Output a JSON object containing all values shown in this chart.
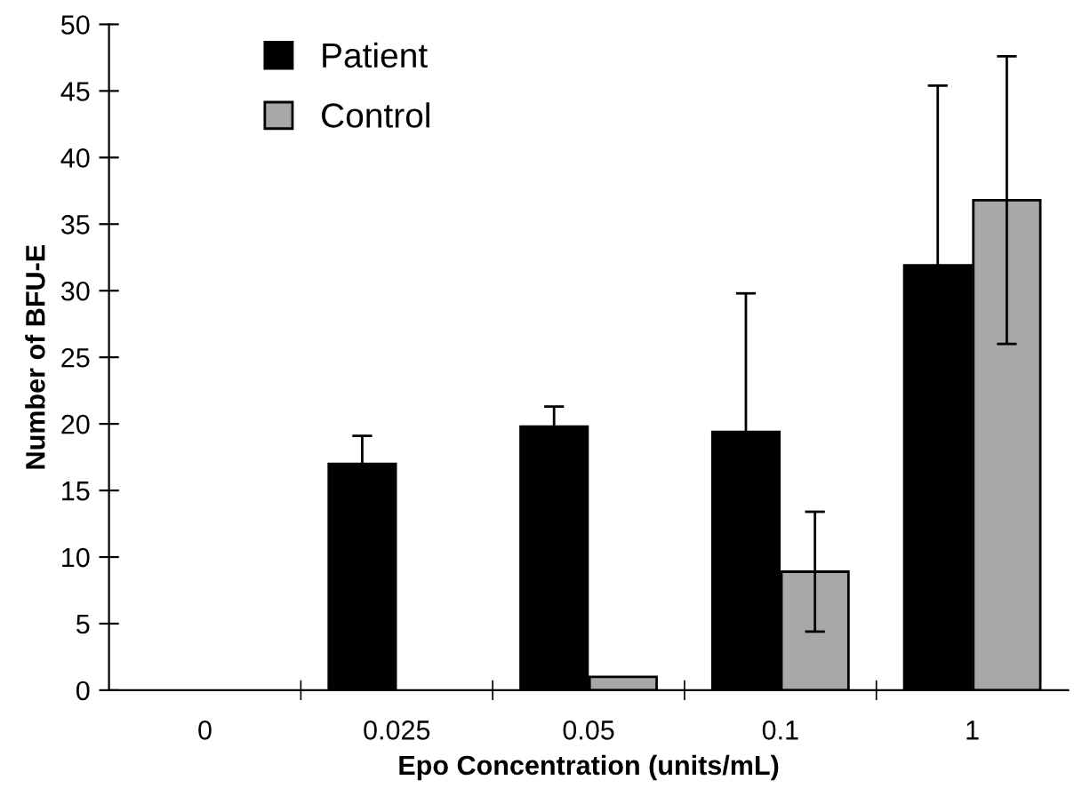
{
  "chart_data": {
    "type": "bar",
    "xlabel": "Epo Concentration (units/mL)",
    "ylabel": "Number of BFU-E",
    "categories": [
      "0",
      "0.025",
      "0.05",
      "0.1",
      "1"
    ],
    "series": [
      {
        "name": "Patient",
        "color": "#000000",
        "values": [
          0,
          17,
          19.8,
          19.4,
          31.9
        ],
        "errors": [
          null,
          2.1,
          1.5,
          10.4,
          13.5
        ]
      },
      {
        "name": "Control",
        "color": "#a8a8a8",
        "values": [
          0,
          0,
          1,
          8.9,
          36.8
        ],
        "errors": [
          null,
          null,
          null,
          4.5,
          10.8
        ]
      }
    ],
    "ylim": [
      0,
      50
    ],
    "yticks": [
      0,
      5,
      10,
      15,
      20,
      25,
      30,
      35,
      40,
      45,
      50
    ],
    "grid": false,
    "legend": "top left"
  }
}
